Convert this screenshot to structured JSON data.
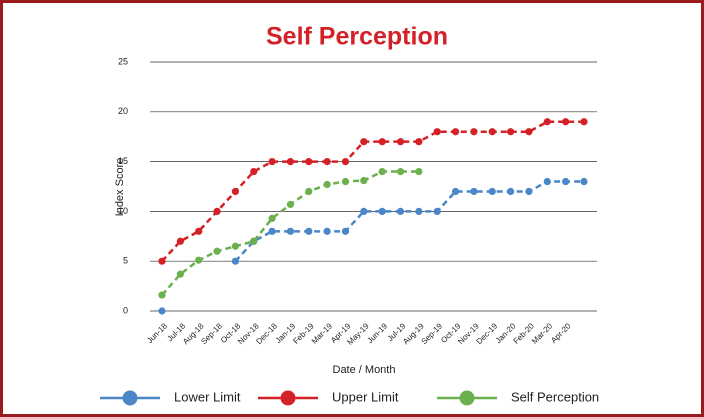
{
  "chart_data": {
    "type": "line",
    "title": "Self Perception",
    "x_label": "Date / Month",
    "y_label": "Index Score",
    "categories": [
      "Jun-18",
      "Jul-18",
      "Aug-18",
      "Sep-18",
      "Oct-18",
      "Nov-18",
      "Dec-18",
      "Jan-19",
      "Feb-19",
      "Mar-19",
      "Apr-19",
      "May-19",
      "Jun-19",
      "Jul-19",
      "Aug-19",
      "Sep-19",
      "Oct-19",
      "Nov-19",
      "Dec-19",
      "Jan-20",
      "Feb-20",
      "Mar-20",
      "Apr-20",
      null
    ],
    "series": [
      {
        "name": "Lower Limit",
        "color": "#4a86c8",
        "values": [
          0,
          null,
          null,
          null,
          5,
          7,
          8,
          8,
          8,
          8,
          8,
          10,
          10,
          10,
          10,
          10,
          12,
          12,
          12,
          12,
          12,
          13,
          13,
          13
        ]
      },
      {
        "name": "Upper Limit",
        "color": "#d42027",
        "values": [
          5,
          7,
          8,
          10,
          12,
          14,
          15,
          15,
          15,
          15,
          15,
          17,
          17,
          17,
          17,
          18,
          18,
          18,
          18,
          18,
          18,
          19,
          19,
          19
        ]
      },
      {
        "name": "Self Perception",
        "color": "#6ab04c",
        "values": [
          1.6,
          3.7,
          5.1,
          6,
          6.5,
          7,
          9.3,
          10.7,
          12,
          12.7,
          13,
          13.1,
          14,
          14,
          14,
          null,
          null,
          null,
          null,
          null,
          null,
          null,
          null,
          null
        ]
      }
    ],
    "ylim": [
      0,
      25
    ],
    "yticks": [
      0,
      5,
      10,
      15,
      20,
      25
    ],
    "grid": true,
    "legend": "bottom"
  }
}
